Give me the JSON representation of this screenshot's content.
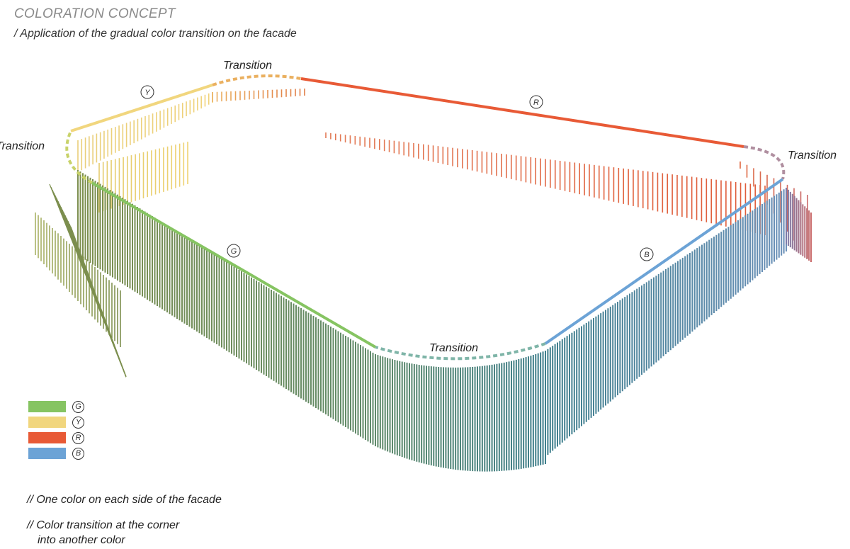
{
  "header": {
    "title": "COLORATION CONCEPT",
    "subtitle": "/ Application of the gradual color transition on the facade"
  },
  "labels": {
    "transition_top": "Transition",
    "transition_left": "Transition",
    "transition_right": "Transition",
    "transition_bottom": "Transition",
    "side_y": "Y",
    "side_r": "R",
    "side_g": "G",
    "side_b": "B"
  },
  "colors": {
    "green": "#86c462",
    "yellow": "#f1d67e",
    "red": "#e85a36",
    "blue": "#6ca3d6",
    "olive": "#7d8f4f",
    "teal": "#3f7f8c"
  },
  "legend": [
    {
      "key": "G",
      "color": "#86c462"
    },
    {
      "key": "Y",
      "color": "#f1d67e"
    },
    {
      "key": "R",
      "color": "#e85a36"
    },
    {
      "key": "B",
      "color": "#6ca3d6"
    }
  ],
  "notes": {
    "note1": "// One color on each side of the facade",
    "note2_line1": "// Color transition at the corner",
    "note2_line2": "into another color"
  }
}
